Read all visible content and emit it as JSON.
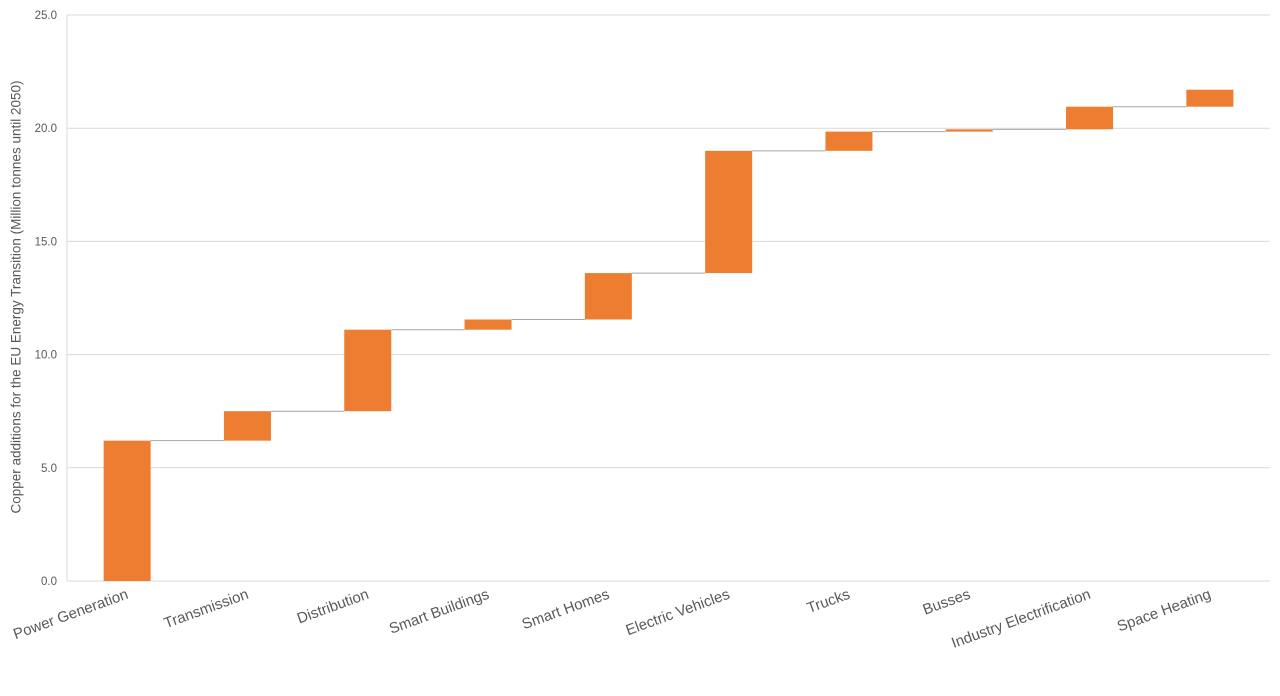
{
  "chart_data": {
    "type": "bar",
    "subtype": "waterfall",
    "title": "",
    "xlabel": "",
    "ylabel": "Copper additions for the EU Energy Transition (Million tonnes until 2050)",
    "categories": [
      "Power Generation",
      "Transmission",
      "Distribution",
      "Smart Buildings",
      "Smart Homes",
      "Electric Vehicles",
      "Trucks",
      "Busses",
      "Industry Electrification",
      "Space Heating"
    ],
    "values": [
      6.2,
      1.3,
      3.6,
      0.45,
      2.05,
      5.4,
      0.85,
      0.1,
      1.0,
      0.75
    ],
    "ylim": [
      0,
      25
    ],
    "yticks": [
      "0.0",
      "5.0",
      "10.0",
      "15.0",
      "20.0",
      "25.0"
    ],
    "grid": true,
    "legend": "none",
    "colors": {
      "bar": "#ED7D31",
      "connector": "#A6A6A6",
      "grid": "#D9D9D9",
      "text": "#595959"
    }
  }
}
